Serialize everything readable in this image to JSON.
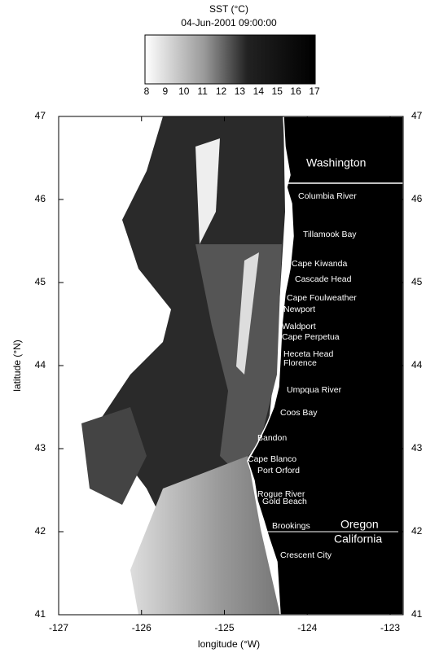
{
  "header": {
    "title": "SST (°C)",
    "subtitle": "04-Jun-2001 09:00:00"
  },
  "colorbar": {
    "ticks": [
      8,
      9,
      10,
      11,
      12,
      13,
      14,
      15,
      16,
      17
    ]
  },
  "axes": {
    "x": {
      "label": "longitude (°W)",
      "ticks": [
        -127,
        -126,
        -125,
        -124,
        -123
      ]
    },
    "y": {
      "label": "latitude (°N)",
      "ticks": [
        41,
        42,
        43,
        44,
        45,
        46,
        47
      ]
    }
  },
  "states": [
    "Washington",
    "Oregon",
    "California"
  ],
  "places": [
    "Columbia River",
    "Tillamook Bay",
    "Cape Kiwanda",
    "Cascade Head",
    "Cape Foulweather",
    "Newport",
    "Waldport",
    "Cape Perpetua",
    "Heceta Head",
    "Florence",
    "Umpqua River",
    "Coos Bay",
    "Bandon",
    "Cape Blanco",
    "Port Orford",
    "Rogue River",
    "Gold Beach",
    "Brookings",
    "Crescent City"
  ]
}
